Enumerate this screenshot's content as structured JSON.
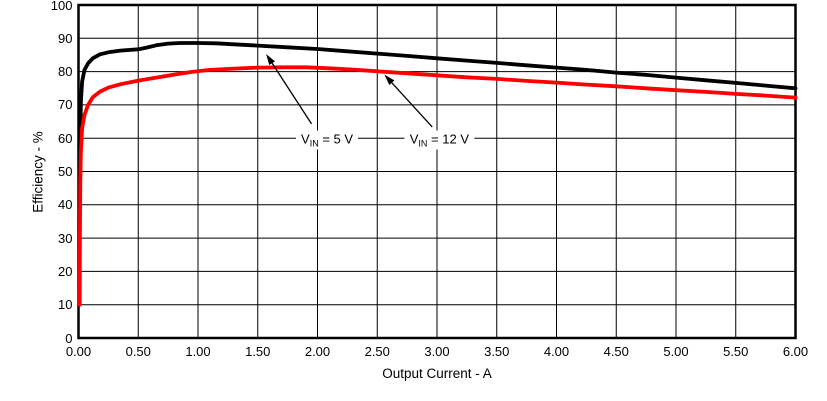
{
  "colors": {
    "background": "#ffffff",
    "grid": "#000000",
    "axis": "#000000",
    "text": "#000000",
    "series_5v": "#000000",
    "series_12v": "#ff0000"
  },
  "chart_data": {
    "type": "line",
    "title": "",
    "xlabel": "Output Current - A",
    "ylabel": "Efficiency - %",
    "xlim": [
      0,
      6
    ],
    "ylim": [
      0,
      100
    ],
    "grid": true,
    "x_ticks": [
      0,
      0.5,
      1,
      1.5,
      2,
      2.5,
      3,
      3.5,
      4,
      4.5,
      5,
      5.5,
      6
    ],
    "x_tick_labels": [
      "0.00",
      "0.50",
      "1.00",
      "1.50",
      "2.00",
      "2.50",
      "3.00",
      "3.50",
      "4.00",
      "4.50",
      "5.00",
      "5.50",
      "6.00"
    ],
    "y_ticks": [
      0,
      10,
      20,
      30,
      40,
      50,
      60,
      70,
      80,
      90,
      100
    ],
    "y_tick_labels": [
      "0",
      "10",
      "20",
      "30",
      "40",
      "50",
      "60",
      "70",
      "80",
      "90",
      "100"
    ],
    "series": [
      {
        "name": "VIN = 5 V",
        "color": "#000000",
        "points": [
          [
            0.013,
            58
          ],
          [
            0.02,
            71
          ],
          [
            0.03,
            77
          ],
          [
            0.05,
            80.5
          ],
          [
            0.08,
            82.5
          ],
          [
            0.12,
            84
          ],
          [
            0.18,
            85.2
          ],
          [
            0.25,
            85.8
          ],
          [
            0.35,
            86.3
          ],
          [
            0.5,
            86.7
          ],
          [
            0.57,
            87.2
          ],
          [
            0.65,
            87.9
          ],
          [
            0.75,
            88.4
          ],
          [
            0.85,
            88.6
          ],
          [
            1.0,
            88.6
          ],
          [
            1.15,
            88.5
          ],
          [
            1.3,
            88.2
          ],
          [
            1.5,
            87.8
          ],
          [
            1.75,
            87.3
          ],
          [
            2.0,
            86.8
          ],
          [
            2.25,
            86.1
          ],
          [
            2.5,
            85.4
          ],
          [
            2.75,
            84.7
          ],
          [
            3.0,
            84.0
          ],
          [
            3.25,
            83.3
          ],
          [
            3.5,
            82.6
          ],
          [
            3.75,
            81.9
          ],
          [
            4.0,
            81.2
          ],
          [
            4.25,
            80.5
          ],
          [
            4.5,
            79.7
          ],
          [
            4.75,
            79.0
          ],
          [
            5.0,
            78.2
          ],
          [
            5.25,
            77.4
          ],
          [
            5.5,
            76.6
          ],
          [
            5.75,
            75.8
          ],
          [
            6.0,
            75.0
          ]
        ]
      },
      {
        "name": "VIN = 12 V",
        "color": "#ff0000",
        "points": [
          [
            0.01,
            10
          ],
          [
            0.012,
            30
          ],
          [
            0.015,
            47
          ],
          [
            0.02,
            56
          ],
          [
            0.03,
            63
          ],
          [
            0.05,
            67
          ],
          [
            0.08,
            70
          ],
          [
            0.12,
            72.3
          ],
          [
            0.18,
            74
          ],
          [
            0.25,
            75.2
          ],
          [
            0.35,
            76.2
          ],
          [
            0.5,
            77.3
          ],
          [
            0.65,
            78.2
          ],
          [
            0.8,
            79.1
          ],
          [
            0.95,
            79.9
          ],
          [
            1.1,
            80.5
          ],
          [
            1.3,
            80.9
          ],
          [
            1.5,
            81.2
          ],
          [
            1.7,
            81.3
          ],
          [
            1.9,
            81.3
          ],
          [
            2.1,
            81.0
          ],
          [
            2.3,
            80.6
          ],
          [
            2.5,
            80.1
          ],
          [
            2.75,
            79.5
          ],
          [
            3.0,
            78.9
          ],
          [
            3.25,
            78.3
          ],
          [
            3.5,
            77.8
          ],
          [
            3.75,
            77.2
          ],
          [
            4.0,
            76.7
          ],
          [
            4.25,
            76.1
          ],
          [
            4.5,
            75.6
          ],
          [
            4.75,
            75.0
          ],
          [
            5.0,
            74.4
          ],
          [
            5.25,
            73.9
          ],
          [
            5.5,
            73.3
          ],
          [
            5.75,
            72.8
          ],
          [
            6.0,
            72.2
          ]
        ]
      }
    ],
    "annotations": [
      {
        "v": "V",
        "sub": "IN",
        "rest": " = 5 V",
        "label_at": [
          2.08,
          59.5
        ],
        "arrow_from": [
          1.95,
          64.3
        ],
        "arrow_to": [
          1.57,
          85.3
        ]
      },
      {
        "v": "V",
        "sub": "IN",
        "rest": " = 12 V",
        "label_at": [
          3.02,
          59.5
        ],
        "arrow_from": [
          2.96,
          63.4
        ],
        "arrow_to": [
          2.56,
          79.1
        ]
      }
    ]
  }
}
